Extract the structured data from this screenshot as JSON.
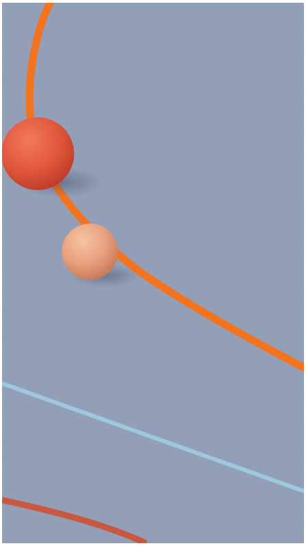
{
  "scene": {
    "surface_color": "#8d9bb2",
    "objects": [
      {
        "name": "large-red-ball",
        "color": "#e2573e",
        "highlight": "#f07a5c",
        "shade": "#b93a26"
      },
      {
        "name": "small-peach-ball",
        "color": "#e9a07d",
        "highlight": "#f6c3a3",
        "shade": "#c57757"
      }
    ],
    "lines": [
      {
        "name": "orange-curved-line",
        "color": "#f4731f"
      },
      {
        "name": "light-blue-line",
        "color": "#9fc8de"
      },
      {
        "name": "red-brown-curved-line",
        "color": "#c8583f"
      }
    ]
  }
}
